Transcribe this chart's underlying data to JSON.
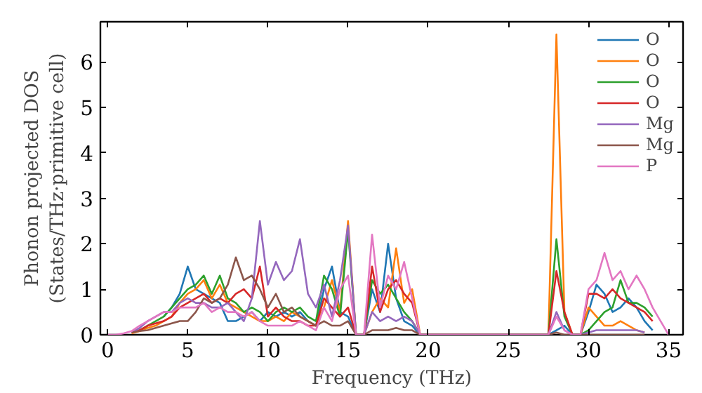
{
  "chart_data": {
    "type": "line",
    "xlabel": "Frequency (THz)",
    "ylabel": "Phonon projected DOS\n(States/THz·primitive cell)",
    "x": [
      0,
      0.5,
      1,
      1.5,
      2,
      2.5,
      3,
      3.5,
      4,
      4.5,
      5,
      5.5,
      6,
      6.5,
      7,
      7.5,
      8,
      8.5,
      9,
      9.5,
      10,
      10.5,
      11,
      11.5,
      12,
      12.5,
      13,
      13.5,
      14,
      14.5,
      15,
      15.5,
      16,
      16.5,
      17,
      17.5,
      18,
      18.5,
      19,
      19.5,
      20,
      20.5,
      21,
      21.5,
      22,
      22.5,
      23,
      23.5,
      24,
      24.5,
      25,
      25.5,
      26,
      26.5,
      27,
      27.5,
      28,
      28.5,
      29,
      29.5,
      30,
      30.5,
      31,
      31.5,
      32,
      32.5,
      33,
      33.5,
      34,
      34.5,
      35
    ],
    "xlim": [
      -0.45,
      35.9
    ],
    "ylim": [
      0,
      6.88
    ],
    "xticks": [
      0,
      5,
      10,
      15,
      20,
      25,
      30,
      35
    ],
    "yticks": [
      0,
      1,
      2,
      3,
      4,
      5,
      6
    ],
    "grid": false,
    "legend": "top right",
    "marker": "none",
    "line_style": "solid",
    "series": [
      {
        "name": "O",
        "color": "#1f77b4",
        "values": [
          null,
          null,
          null,
          null,
          null,
          null,
          null,
          0.4,
          0.6,
          0.9,
          1.5,
          1.0,
          0.9,
          0.8,
          0.7,
          0.3,
          0.3,
          0.4,
          0.5,
          0.3,
          0.5,
          0.4,
          0.5,
          0.4,
          0.5,
          0.3,
          0.2,
          1.0,
          1.5,
          0.5,
          0.4,
          0,
          0,
          1.0,
          0.5,
          2.0,
          0.8,
          0.3,
          0.2,
          0,
          0,
          0,
          0,
          0,
          0,
          0,
          0,
          0,
          0,
          0,
          0,
          0,
          0,
          0,
          0,
          0,
          0.1,
          0.2,
          0,
          0,
          0.5,
          1.1,
          0.9,
          0.5,
          0.6,
          0.8,
          0.6,
          0.3,
          0.1,
          null,
          null
        ]
      },
      {
        "name": "O",
        "color": "#ff7f0e",
        "values": [
          null,
          null,
          null,
          0.03,
          0.08,
          0.15,
          0.2,
          0.3,
          0.4,
          0.7,
          0.9,
          1.0,
          1.2,
          0.8,
          1.1,
          0.7,
          0.6,
          0.5,
          0.4,
          0.3,
          0.3,
          0.4,
          0.3,
          0.5,
          0.4,
          0.3,
          0.2,
          0.6,
          1.2,
          0.5,
          2.5,
          0,
          0,
          0.5,
          0.8,
          0.6,
          1.9,
          0.7,
          1.0,
          0,
          0,
          0,
          0,
          0,
          0,
          0,
          0,
          0,
          0,
          0,
          0,
          0,
          0,
          0,
          0,
          0,
          6.6,
          0.5,
          0,
          0,
          0.6,
          0.4,
          0.2,
          0.2,
          0.3,
          0.2,
          0.1,
          0.05,
          null,
          null,
          null
        ]
      },
      {
        "name": "O",
        "color": "#2ca02c",
        "values": [
          null,
          null,
          null,
          0.05,
          0.1,
          0.2,
          0.3,
          0.4,
          0.6,
          0.8,
          1.0,
          1.1,
          1.3,
          0.9,
          1.3,
          0.8,
          0.7,
          0.5,
          0.6,
          0.5,
          0.3,
          0.5,
          0.6,
          0.5,
          0.6,
          0.4,
          0.3,
          1.3,
          1.0,
          0.4,
          2.3,
          0,
          0,
          1.2,
          0.9,
          1.1,
          0.8,
          0.5,
          0.3,
          0,
          0,
          0,
          0,
          0,
          0,
          0,
          0,
          0,
          0,
          0,
          0,
          0,
          0,
          0,
          0,
          0,
          2.1,
          0.4,
          0,
          0,
          0.1,
          0.3,
          0.5,
          0.6,
          1.2,
          0.7,
          0.7,
          0.6,
          0.4,
          null,
          null
        ]
      },
      {
        "name": "O",
        "color": "#d62728",
        "values": [
          null,
          null,
          null,
          0.05,
          0.1,
          0.2,
          0.25,
          0.3,
          0.4,
          0.6,
          0.7,
          0.8,
          0.9,
          0.7,
          0.8,
          0.7,
          0.9,
          1.0,
          0.8,
          1.5,
          0.4,
          0.6,
          0.4,
          0.3,
          0.3,
          0.2,
          0.2,
          0.8,
          0.6,
          0.4,
          0.6,
          0,
          0,
          1.5,
          0.5,
          1.0,
          1.2,
          0.9,
          0.7,
          0,
          0,
          0,
          0,
          0,
          0,
          0,
          0,
          0,
          0,
          0,
          0,
          0,
          0,
          0,
          0,
          0,
          1.4,
          0.5,
          0,
          0,
          0.9,
          0.9,
          0.8,
          1.0,
          0.8,
          0.7,
          0.6,
          0.5,
          0.3,
          null,
          null
        ]
      },
      {
        "name": "Mg",
        "color": "#9467bd",
        "values": [
          null,
          null,
          null,
          0.05,
          0.15,
          0.3,
          0.4,
          0.5,
          0.5,
          0.7,
          0.8,
          0.7,
          0.7,
          0.6,
          0.6,
          0.7,
          0.5,
          0.3,
          0.8,
          2.5,
          1.1,
          1.6,
          1.2,
          1.4,
          2.1,
          0.9,
          0.6,
          1.1,
          0.4,
          1.2,
          2.4,
          0,
          0,
          0.5,
          0.3,
          0.4,
          0.3,
          0.4,
          0.3,
          0,
          0,
          0,
          0,
          0,
          0,
          0,
          0,
          0,
          0,
          0,
          0,
          0,
          0,
          0,
          0,
          0,
          0.5,
          0.1,
          0,
          0,
          0.05,
          0.1,
          0.1,
          0.1,
          0.1,
          0.1,
          0.1,
          0.05,
          null,
          null,
          null
        ]
      },
      {
        "name": "Mg",
        "color": "#8c564b",
        "values": [
          null,
          null,
          null,
          0.05,
          0.08,
          0.1,
          0.15,
          0.2,
          0.25,
          0.3,
          0.3,
          0.5,
          0.8,
          0.7,
          0.8,
          1.1,
          1.7,
          1.2,
          1.3,
          1.0,
          0.6,
          0.9,
          0.5,
          0.6,
          0.4,
          0.3,
          0.2,
          0.3,
          0.2,
          0.2,
          0.3,
          0,
          0,
          0.1,
          0.1,
          0.1,
          0.15,
          0.1,
          0.1,
          0,
          0,
          0,
          0,
          0,
          0,
          0,
          0,
          0,
          0,
          0,
          0,
          0,
          0,
          0,
          0,
          0,
          0.05,
          0,
          0,
          0,
          0,
          0,
          0,
          0,
          0,
          0,
          0,
          0,
          null,
          null,
          null
        ]
      },
      {
        "name": "P",
        "color": "#e377c2",
        "values": [
          0,
          0,
          0.03,
          0.08,
          0.2,
          0.3,
          0.4,
          0.5,
          0.5,
          0.6,
          0.6,
          0.6,
          0.7,
          0.5,
          0.6,
          0.5,
          0.5,
          0.4,
          0.5,
          0.3,
          0.2,
          0.2,
          0.2,
          0.2,
          0.3,
          0.2,
          0.1,
          0.6,
          0.3,
          1.0,
          1.3,
          0,
          0,
          2.2,
          0.6,
          1.3,
          1.0,
          1.6,
          0.8,
          0,
          0,
          0,
          0,
          0,
          0,
          0,
          0,
          0,
          0,
          0,
          0,
          0,
          0,
          0,
          0,
          0,
          0.4,
          0.1,
          0,
          0,
          1.0,
          1.2,
          1.8,
          1.2,
          1.4,
          1.0,
          1.3,
          1.0,
          0.6,
          0.3,
          0
        ]
      }
    ]
  }
}
